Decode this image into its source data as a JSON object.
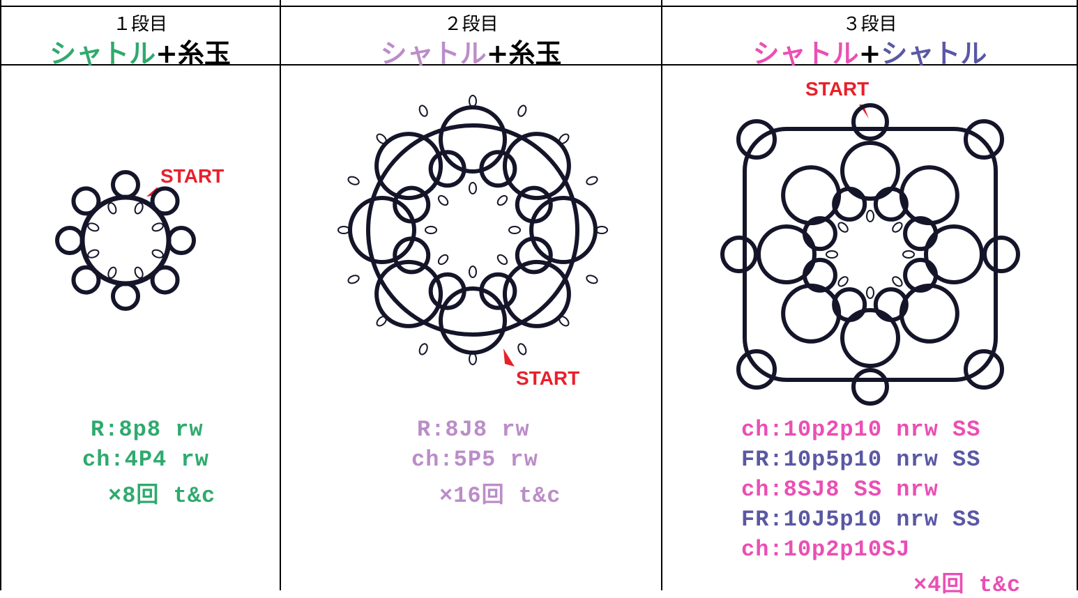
{
  "columns": [
    {
      "round": "１段目",
      "title": [
        {
          "text": "シャトル",
          "color": "#2eaa6e"
        },
        {
          "text": "+糸玉",
          "color": "#000000"
        }
      ],
      "start": "START",
      "lines": [
        {
          "text": "R:8p8 rw",
          "color": "#2eaa6e"
        },
        {
          "text": "ch:4P4 rw",
          "color": "#2eaa6e"
        },
        {
          "text": "×8回 t&c",
          "color": "#2eaa6e"
        }
      ]
    },
    {
      "round": "２段目",
      "title": [
        {
          "text": "シャトル",
          "color": "#bb8dc8"
        },
        {
          "text": "+糸玉",
          "color": "#000000"
        }
      ],
      "start": "START",
      "lines": [
        {
          "text": "R:8J8 rw",
          "color": "#bb8dc8"
        },
        {
          "text": "ch:5P5 rw",
          "color": "#bb8dc8"
        },
        {
          "text": "×16回 t&c",
          "color": "#bb8dc8"
        }
      ]
    },
    {
      "round": "３段目",
      "title": [
        {
          "text": "シャトル",
          "color": "#ea4fb4"
        },
        {
          "text": "+",
          "color": "#000000"
        },
        {
          "text": "シャトル",
          "color": "#5a58a4"
        }
      ],
      "start": "START",
      "lines": [
        {
          "text": "ch:10p2p10 nrw SS",
          "color": "#ea4fb4"
        },
        {
          "text": "FR:10p5p10 nrw SS",
          "color": "#5a58a4"
        },
        {
          "text": "ch:8SJ8 SS nrw",
          "color": "#ea4fb4"
        },
        {
          "text": "FR:10J5p10 nrw SS",
          "color": "#5a58a4"
        },
        {
          "text": "ch:10p2p10SJ",
          "color": "#ea4fb4"
        },
        {
          "text": "×4回 t&c",
          "color": "#ea4fb4"
        }
      ]
    }
  ]
}
